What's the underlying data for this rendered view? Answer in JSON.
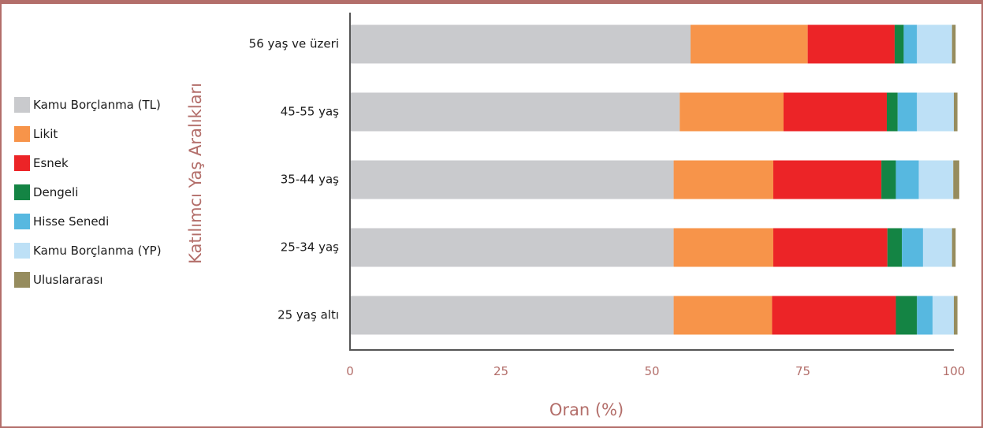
{
  "chart_data": {
    "type": "bar",
    "orientation": "horizontal",
    "stacked": true,
    "xlabel": "Oran (%)",
    "ylabel": "Katılımcı Yaş Aralıkları",
    "xlim": [
      0,
      100
    ],
    "xticks": [
      "0",
      "25",
      "50",
      "75",
      "100"
    ],
    "grid": false,
    "legend_position": "left",
    "categories": [
      "56 yaş ve üzeri",
      "45-55 yaş",
      "35-44 yaş",
      "25-34 yaş",
      "25 yaş altı"
    ],
    "series": [
      {
        "name": "Kamu Borçlanma (TL)",
        "color": "#c9cacd",
        "values": [
          56.4,
          54.6,
          53.6,
          53.6,
          53.6
        ]
      },
      {
        "name": "Likit",
        "color": "#f7944a",
        "values": [
          19.4,
          17.2,
          16.5,
          16.5,
          16.3
        ]
      },
      {
        "name": "Esnek",
        "color": "#ec2427",
        "values": [
          14.4,
          17.1,
          17.9,
          18.9,
          20.5
        ]
      },
      {
        "name": "Dengeli",
        "color": "#148444",
        "values": [
          1.5,
          1.8,
          2.4,
          2.4,
          3.5
        ]
      },
      {
        "name": "Hisse Senedi",
        "color": "#57b8e0",
        "values": [
          2.2,
          3.2,
          3.8,
          3.5,
          2.6
        ]
      },
      {
        "name": "Kamu Borçlanma (YP)",
        "color": "#bde0f6",
        "values": [
          5.8,
          6.1,
          5.7,
          4.8,
          3.5
        ]
      },
      {
        "name": "Uluslararası",
        "color": "#968c5e",
        "values": [
          0.6,
          0.6,
          1.0,
          0.6,
          0.6
        ]
      }
    ]
  }
}
